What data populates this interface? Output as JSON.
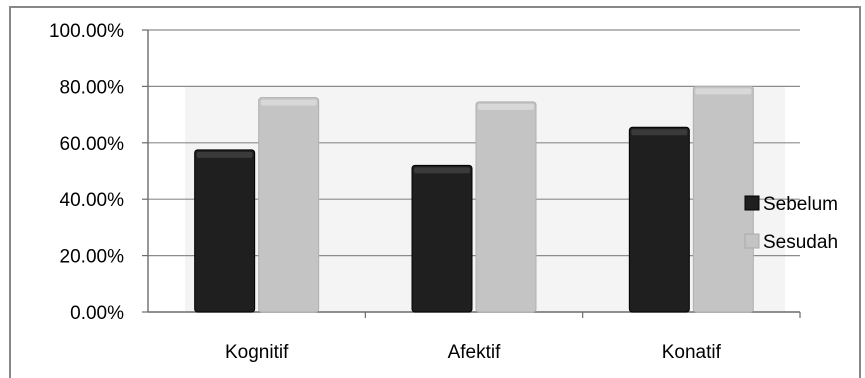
{
  "chart_data": {
    "type": "bar",
    "categories": [
      "Kognitif",
      "Afektif",
      "Konatif"
    ],
    "series": [
      {
        "name": "Sebelum",
        "values": [
          57.5,
          52.0,
          65.5
        ],
        "color": "#1f1f1f"
      },
      {
        "name": "Sesudah",
        "values": [
          76.0,
          74.5,
          80.0
        ],
        "color": "#c4c4c4"
      }
    ],
    "ylim": [
      0,
      100
    ],
    "yticks": [
      0,
      20,
      40,
      60,
      80,
      100
    ],
    "ytick_labels": [
      "0.00%",
      "20.00%",
      "40.00%",
      "60.00%",
      "80.00%",
      "100.00%"
    ],
    "grid": true,
    "legend_position": "right",
    "title": "",
    "xlabel": "",
    "ylabel": ""
  }
}
